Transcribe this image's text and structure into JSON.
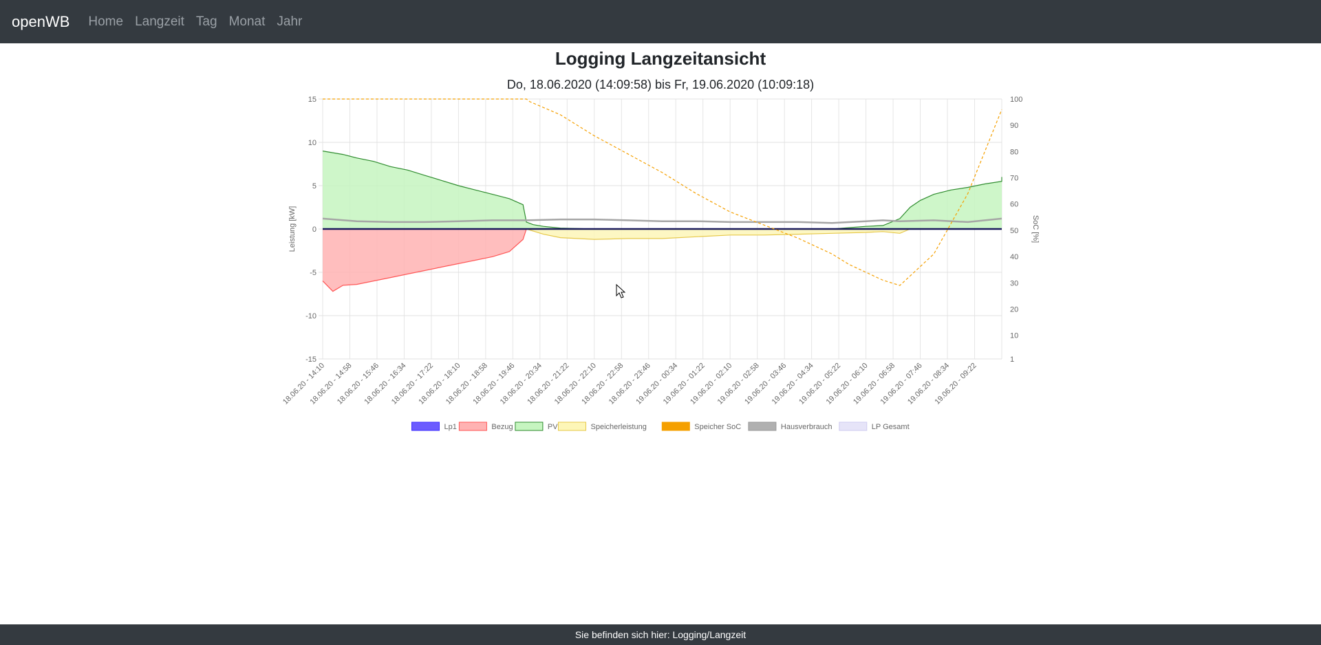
{
  "navbar": {
    "brand": "openWB",
    "links": [
      "Home",
      "Langzeit",
      "Tag",
      "Monat",
      "Jahr"
    ]
  },
  "page": {
    "title": "Logging Langzeitansicht",
    "subtitle": "Do, 18.06.2020 (14:09:58) bis Fr, 19.06.2020 (10:09:18)"
  },
  "footer": {
    "text": "Sie befinden sich hier: Logging/Langzeit"
  },
  "chart_data": {
    "type": "line",
    "ylabel": "Leistung [kW]",
    "y2label": "SoC [%]",
    "ylim": [
      -15,
      15
    ],
    "y2lim": [
      1,
      100
    ],
    "yticks": [
      15,
      10,
      5,
      0,
      -5,
      -10,
      -15
    ],
    "y2ticks": [
      100,
      90,
      80,
      70,
      60,
      50,
      40,
      30,
      20,
      10,
      1
    ],
    "xticks": [
      "18.06.20 - 14:10",
      "18.06.20 - 14:58",
      "18.06.20 - 15:46",
      "18.06.20 - 16:34",
      "18.06.20 - 17:22",
      "18.06.20 - 18:10",
      "18.06.20 - 18:58",
      "18.06.20 - 19:46",
      "18.06.20 - 20:34",
      "18.06.20 - 21:22",
      "18.06.20 - 22:10",
      "18.06.20 - 22:58",
      "18.06.20 - 23:46",
      "19.06.20 - 00:34",
      "19.06.20 - 01:22",
      "19.06.20 - 02:10",
      "19.06.20 - 02:58",
      "19.06.20 - 03:46",
      "19.06.20 - 04:34",
      "19.06.20 - 05:22",
      "19.06.20 - 06:10",
      "19.06.20 - 06:58",
      "19.06.20 - 07:46",
      "19.06.20 - 08:34",
      "19.06.20 - 09:22"
    ],
    "legend": [
      {
        "label": "Lp1",
        "color": "#6c5cff",
        "border": "#3c2cff"
      },
      {
        "label": "Bezug",
        "color": "#ffb3b3",
        "border": "#ff5555"
      },
      {
        "label": "PV",
        "color": "#c6f5c0",
        "border": "#2e8b2e"
      },
      {
        "label": "Speicherleistung",
        "color": "#fdf6b8",
        "border": "#e6c84a"
      },
      {
        "label": "Speicher SoC",
        "color": "#f5a000",
        "border": "#f5a000"
      },
      {
        "label": "Hausverbrauch",
        "color": "#b0b0b0",
        "border": "#999999"
      },
      {
        "label": "LP Gesamt",
        "color": "#e6e4f8",
        "border": "#cfcbf0"
      }
    ],
    "legend_position": "bottom",
    "grid": true,
    "series": [
      {
        "name": "PV",
        "x_hours": [
          0,
          0.3,
          0.6,
          1,
          1.5,
          2,
          2.5,
          3,
          3.5,
          4,
          4.5,
          5,
          5.5,
          5.9,
          6,
          6.2,
          6.5,
          7,
          8,
          9,
          10,
          11,
          12,
          13,
          14,
          15,
          16,
          16.5,
          17,
          17.3,
          17.6,
          18,
          18.5,
          19,
          19.5,
          20,
          20
        ],
        "values": [
          9,
          8.8,
          8.6,
          8.2,
          7.8,
          7.2,
          6.8,
          6.2,
          5.6,
          5,
          4.5,
          4,
          3.5,
          2.8,
          0.8,
          0.5,
          0.3,
          0.1,
          0,
          0,
          0,
          0,
          0,
          0,
          0,
          0,
          0.3,
          0.4,
          1.2,
          2.5,
          3.3,
          4,
          4.5,
          4.8,
          5.2,
          5.5,
          6
        ]
      },
      {
        "name": "Bezug",
        "x_hours": [
          0,
          0.3,
          0.6,
          1,
          1.5,
          2,
          2.5,
          3,
          3.5,
          4,
          4.5,
          5,
          5.5,
          5.9,
          6
        ],
        "values": [
          -6,
          -7.2,
          -6.5,
          -6.4,
          -6,
          -5.6,
          -5.2,
          -4.8,
          -4.4,
          -4,
          -3.6,
          -3.2,
          -2.6,
          -1.2,
          0
        ]
      },
      {
        "name": "Speicherleistung",
        "x_hours": [
          6,
          6.5,
          7,
          8,
          9,
          10,
          11,
          12,
          13,
          14,
          15,
          16,
          16.5,
          17,
          17.3
        ],
        "values": [
          0,
          -0.6,
          -1,
          -1.2,
          -1.1,
          -1.1,
          -0.9,
          -0.7,
          -0.7,
          -0.6,
          -0.5,
          -0.4,
          -0.3,
          -0.5,
          0
        ]
      },
      {
        "name": "Speicher SoC",
        "x_hours": [
          0,
          1,
          2,
          3,
          4,
          5,
          6,
          6.1,
          7,
          8,
          9,
          10,
          11,
          12,
          13,
          14,
          15,
          15.5,
          16,
          16.5,
          17,
          18,
          19,
          20
        ],
        "values": [
          100,
          100,
          100,
          100,
          100,
          100,
          100,
          99,
          94,
          86,
          79,
          72,
          64,
          57,
          52,
          47,
          41,
          37,
          34,
          31,
          29,
          41,
          64,
          96
        ]
      },
      {
        "name": "Hausverbrauch",
        "x_hours": [
          0,
          1,
          2,
          3,
          4,
          5,
          6,
          7,
          8,
          9,
          10,
          11,
          12,
          13,
          14,
          15,
          16,
          16.5,
          17,
          18,
          19,
          20
        ],
        "values": [
          1.2,
          0.9,
          0.8,
          0.8,
          0.9,
          1,
          1,
          1.1,
          1.1,
          1,
          0.9,
          0.9,
          0.8,
          0.8,
          0.8,
          0.7,
          0.9,
          1,
          0.9,
          1,
          0.8,
          1.2
        ]
      },
      {
        "name": "Lp1",
        "x_hours": [
          0,
          20
        ],
        "values": [
          0,
          0
        ]
      }
    ]
  }
}
